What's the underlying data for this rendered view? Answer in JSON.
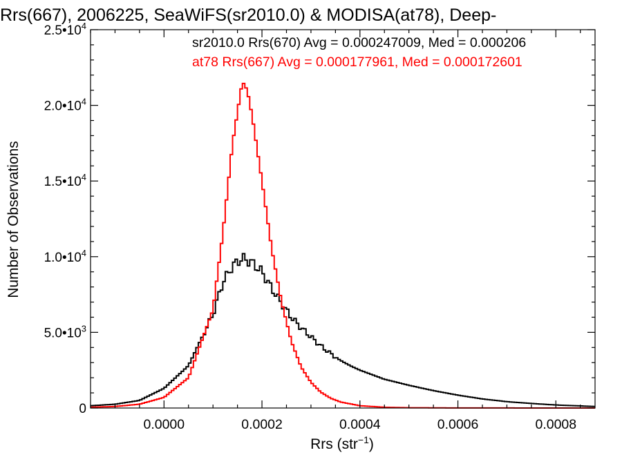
{
  "chart_data": {
    "type": "histogram",
    "title": "Rrs(667), 2006225, SeaWiFS(sr2010.0) & MODISA(at78), Deep-",
    "xlabel": "Rrs (str",
    "xlabel_sup": "−1",
    "xlabel_end": ")",
    "ylabel": "Number of Observations",
    "xlim": [
      -0.00015,
      0.00088
    ],
    "ylim": [
      0,
      25000
    ],
    "x_ticks": [
      {
        "value": 0.0,
        "label": "0.0000"
      },
      {
        "value": 0.0002,
        "label": "0.0002"
      },
      {
        "value": 0.0004,
        "label": "0.0004"
      },
      {
        "value": 0.0006,
        "label": "0.0006"
      },
      {
        "value": 0.0008,
        "label": "0.0008"
      }
    ],
    "y_ticks": [
      {
        "value": 0,
        "mant": "0",
        "exp": ""
      },
      {
        "value": 5000,
        "mant": "5.0•10",
        "exp": "3"
      },
      {
        "value": 10000,
        "mant": "1.0•10",
        "exp": "4"
      },
      {
        "value": 15000,
        "mant": "1.5•10",
        "exp": "4"
      },
      {
        "value": 20000,
        "mant": "2.0•10",
        "exp": "4"
      },
      {
        "value": 25000,
        "mant": "2.5•10",
        "exp": "4"
      }
    ],
    "legend_position": "top-right",
    "series": [
      {
        "name": "sr2010.0 Rrs(670) Avg = 0.000247009, Med = 0.000206",
        "color": "#000000",
        "points": [
          [
            -0.00015,
            150
          ],
          [
            -0.0001,
            250
          ],
          [
            -5e-05,
            500
          ],
          [
            0.0,
            1300
          ],
          [
            5e-05,
            2800
          ],
          [
            0.0001,
            6200
          ],
          [
            0.00012,
            8300
          ],
          [
            0.00014,
            9400
          ],
          [
            0.00016,
            9900
          ],
          [
            0.00018,
            9600
          ],
          [
            0.0002,
            9000
          ],
          [
            0.00022,
            7900
          ],
          [
            0.00024,
            6900
          ],
          [
            0.00026,
            6000
          ],
          [
            0.00028,
            5300
          ],
          [
            0.0003,
            4700
          ],
          [
            0.00032,
            4100
          ],
          [
            0.00034,
            3600
          ],
          [
            0.00036,
            3150
          ],
          [
            0.00038,
            2800
          ],
          [
            0.0004,
            2500
          ],
          [
            0.00045,
            1900
          ],
          [
            0.0005,
            1500
          ],
          [
            0.00055,
            1150
          ],
          [
            0.0006,
            850
          ],
          [
            0.00065,
            600
          ],
          [
            0.0007,
            420
          ],
          [
            0.00075,
            300
          ],
          [
            0.0008,
            200
          ],
          [
            0.00088,
            100
          ]
        ]
      },
      {
        "name": "at78 Rrs(667) Avg = 0.000177961, Med = 0.000172601",
        "color": "#ff0000",
        "points": [
          [
            -0.00015,
            50
          ],
          [
            -0.0001,
            100
          ],
          [
            -5e-05,
            250
          ],
          [
            0.0,
            700
          ],
          [
            5e-05,
            2000
          ],
          [
            0.0001,
            6500
          ],
          [
            0.00012,
            11500
          ],
          [
            0.00014,
            17500
          ],
          [
            0.00016,
            21600
          ],
          [
            0.00017,
            21000
          ],
          [
            0.00018,
            19300
          ],
          [
            0.0002,
            15000
          ],
          [
            0.00022,
            10500
          ],
          [
            0.00024,
            7000
          ],
          [
            0.00026,
            4400
          ],
          [
            0.00028,
            2700
          ],
          [
            0.0003,
            1700
          ],
          [
            0.00032,
            1050
          ],
          [
            0.00034,
            650
          ],
          [
            0.00036,
            400
          ],
          [
            0.0004,
            150
          ],
          [
            0.00045,
            50
          ],
          [
            0.0005,
            20
          ],
          [
            0.0006,
            5
          ],
          [
            0.00088,
            0
          ]
        ]
      }
    ]
  }
}
